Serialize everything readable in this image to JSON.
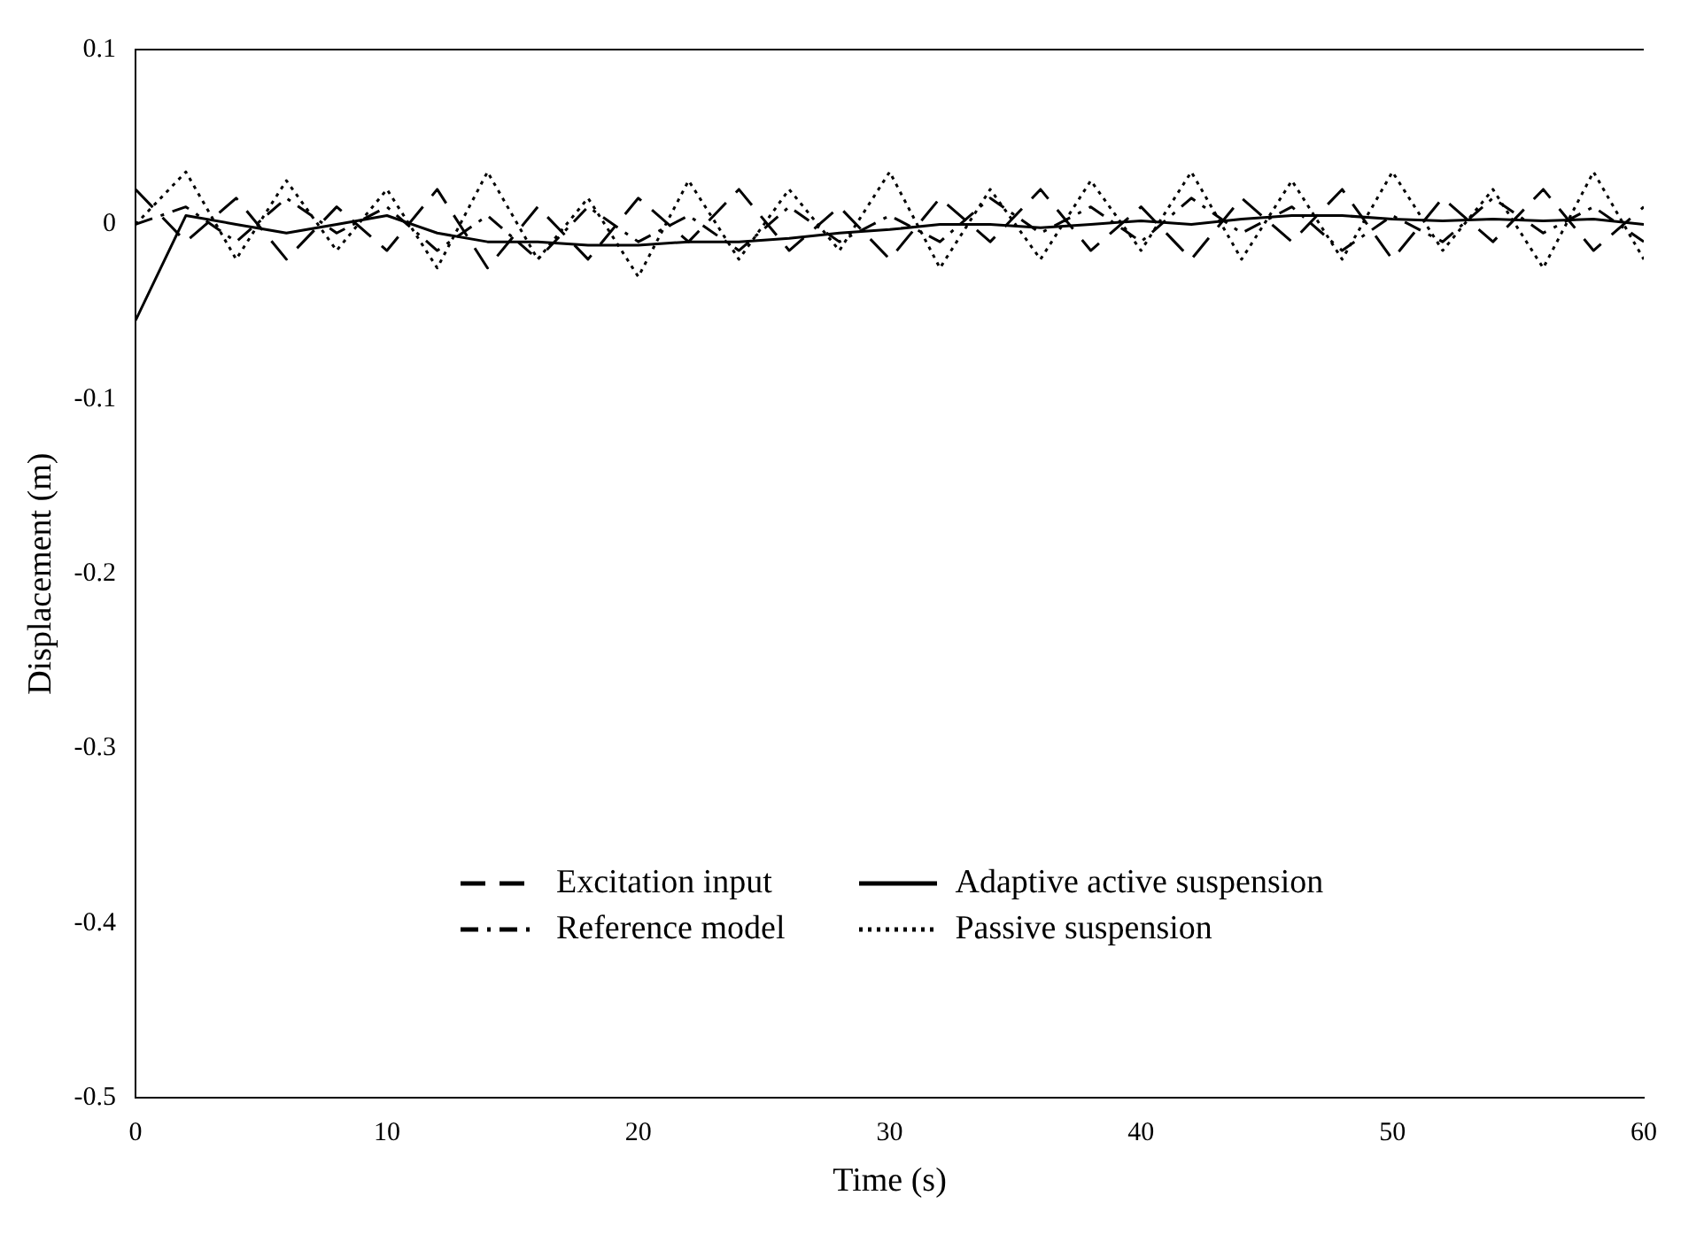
{
  "chart_data": {
    "type": "line",
    "xlabel": "Time (s)",
    "ylabel": "Displacement (m)",
    "x": [
      0,
      2,
      4,
      6,
      8,
      10,
      12,
      14,
      16,
      18,
      20,
      22,
      24,
      26,
      28,
      30,
      32,
      34,
      36,
      38,
      40,
      42,
      44,
      46,
      48,
      50,
      52,
      54,
      56,
      58,
      60
    ],
    "series": [
      {
        "name": "Excitation input",
        "color": "#000000",
        "line_style": "dashed",
        "values": [
          0.02,
          -0.01,
          0.015,
          -0.02,
          0.01,
          -0.015,
          0.02,
          -0.025,
          0.01,
          -0.02,
          0.015,
          -0.01,
          0.02,
          -0.015,
          0.01,
          -0.02,
          0.015,
          -0.01,
          0.02,
          -0.015,
          0.01,
          -0.02,
          0.015,
          -0.01,
          0.02,
          -0.02,
          0.015,
          -0.01,
          0.02,
          -0.015,
          0.01
        ]
      },
      {
        "name": "Reference model",
        "color": "#000000",
        "line_style": "dashdot",
        "values": [
          0,
          0.01,
          -0.01,
          0.015,
          -0.005,
          0.01,
          -0.015,
          0.005,
          -0.02,
          0.01,
          -0.01,
          0.005,
          -0.015,
          0.01,
          -0.01,
          0.005,
          -0.01,
          0.015,
          -0.005,
          0.01,
          -0.01,
          0.015,
          -0.005,
          0.01,
          -0.015,
          0.005,
          -0.01,
          0.015,
          -0.005,
          0.01,
          -0.01
        ]
      },
      {
        "name": "Adaptive active suspension",
        "color": "#000000",
        "line_style": "solid",
        "values": [
          -0.055,
          0.005,
          0,
          -0.005,
          0,
          0.005,
          -0.005,
          -0.01,
          -0.01,
          -0.012,
          -0.012,
          -0.01,
          -0.01,
          -0.008,
          -0.005,
          -0.003,
          0,
          0,
          -0.002,
          0,
          0.002,
          0,
          0.003,
          0.005,
          0.005,
          0.003,
          0.002,
          0.003,
          0.002,
          0.003,
          0
        ]
      },
      {
        "name": "Passive suspension",
        "color": "#000000",
        "line_style": "dotted",
        "values": [
          0,
          0.03,
          -0.02,
          0.025,
          -0.015,
          0.02,
          -0.025,
          0.03,
          -0.02,
          0.015,
          -0.03,
          0.025,
          -0.02,
          0.02,
          -0.015,
          0.03,
          -0.025,
          0.02,
          -0.02,
          0.025,
          -0.015,
          0.03,
          -0.02,
          0.025,
          -0.02,
          0.03,
          -0.015,
          0.02,
          -0.025,
          0.03,
          -0.02
        ]
      }
    ],
    "xlim": [
      0,
      60
    ],
    "xticks": [
      0,
      10,
      20,
      30,
      40,
      50,
      60
    ],
    "ylim": [
      -0.5,
      0.1
    ],
    "yticks": [
      0.1,
      0,
      -0.1,
      -0.2,
      -0.3,
      -0.4,
      -0.5
    ],
    "grid": false,
    "legend": "bottom",
    "marker": "none"
  }
}
